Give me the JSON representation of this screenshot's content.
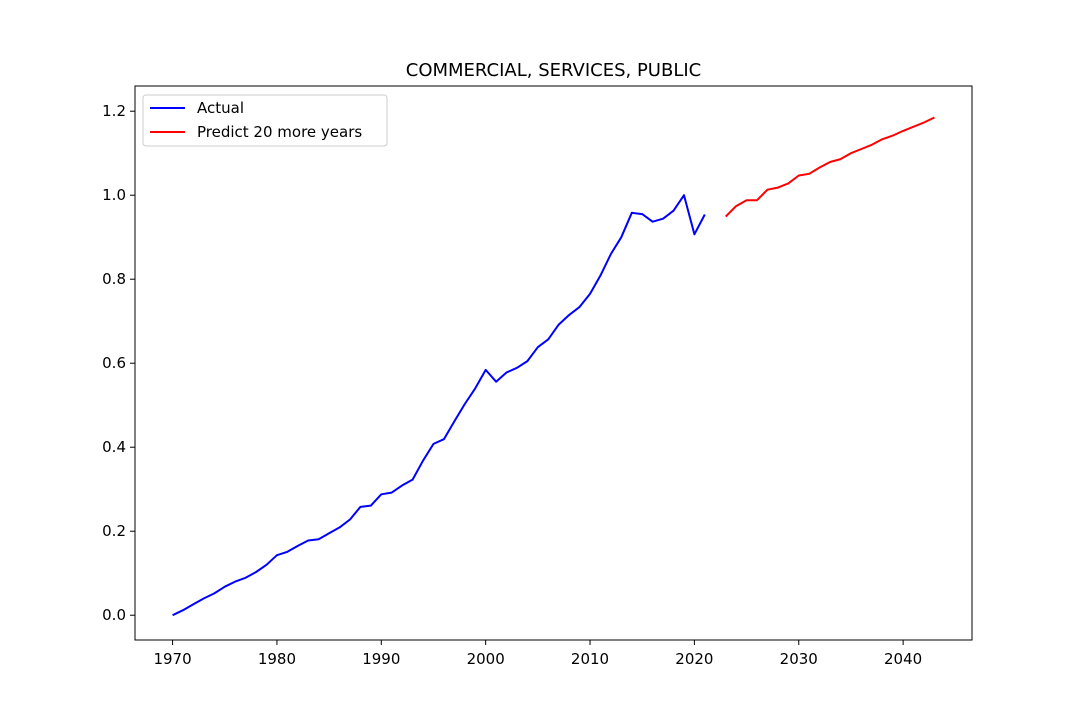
{
  "chart_data": {
    "type": "line",
    "title": "COMMERCIAL, SERVICES, PUBLIC",
    "xlabel": "",
    "ylabel": "",
    "xlim": [
      1966.4,
      2046.6
    ],
    "ylim": [
      -0.059,
      1.26
    ],
    "xticks": [
      1970,
      1980,
      1990,
      2000,
      2010,
      2020,
      2030,
      2040
    ],
    "yticks": [
      0.0,
      0.2,
      0.4,
      0.6,
      0.8,
      1.0,
      1.2
    ],
    "ytick_labels": [
      "0.0",
      "0.2",
      "0.4",
      "0.6",
      "0.8",
      "1.0",
      "1.2"
    ],
    "grid": false,
    "legend_position": "upper-left",
    "series": [
      {
        "name": "Actual",
        "color": "#0000ff",
        "x": [
          1970,
          1971,
          1972,
          1973,
          1974,
          1975,
          1976,
          1977,
          1978,
          1979,
          1980,
          1981,
          1982,
          1983,
          1984,
          1985,
          1986,
          1987,
          1988,
          1989,
          1990,
          1991,
          1992,
          1993,
          1994,
          1995,
          1996,
          1997,
          1998,
          1999,
          2000,
          2001,
          2002,
          2003,
          2004,
          2005,
          2006,
          2007,
          2008,
          2009,
          2010,
          2011,
          2012,
          2013,
          2014,
          2015,
          2016,
          2017,
          2018,
          2019,
          2020,
          2021
        ],
        "y": [
          0.0,
          0.012,
          0.026,
          0.04,
          0.052,
          0.068,
          0.08,
          0.089,
          0.103,
          0.12,
          0.143,
          0.151,
          0.165,
          0.178,
          0.181,
          0.195,
          0.209,
          0.228,
          0.258,
          0.261,
          0.288,
          0.292,
          0.309,
          0.323,
          0.368,
          0.408,
          0.419,
          0.462,
          0.503,
          0.54,
          0.584,
          0.556,
          0.578,
          0.589,
          0.605,
          0.638,
          0.657,
          0.692,
          0.715,
          0.734,
          0.765,
          0.809,
          0.86,
          0.9,
          0.958,
          0.955,
          0.937,
          0.944,
          0.963,
          1.0,
          0.907,
          0.954
        ]
      },
      {
        "name": "Predict 20 more years",
        "color": "#ff0000",
        "x": [
          2023,
          2024,
          2025,
          2026,
          2027,
          2028,
          2029,
          2030,
          2031,
          2032,
          2033,
          2034,
          2035,
          2036,
          2037,
          2038,
          2039,
          2040,
          2041,
          2042,
          2043
        ],
        "y": [
          0.949,
          0.974,
          0.988,
          0.988,
          1.013,
          1.018,
          1.028,
          1.047,
          1.051,
          1.066,
          1.079,
          1.086,
          1.1,
          1.11,
          1.12,
          1.133,
          1.142,
          1.153,
          1.163,
          1.173,
          1.185
        ]
      }
    ]
  }
}
